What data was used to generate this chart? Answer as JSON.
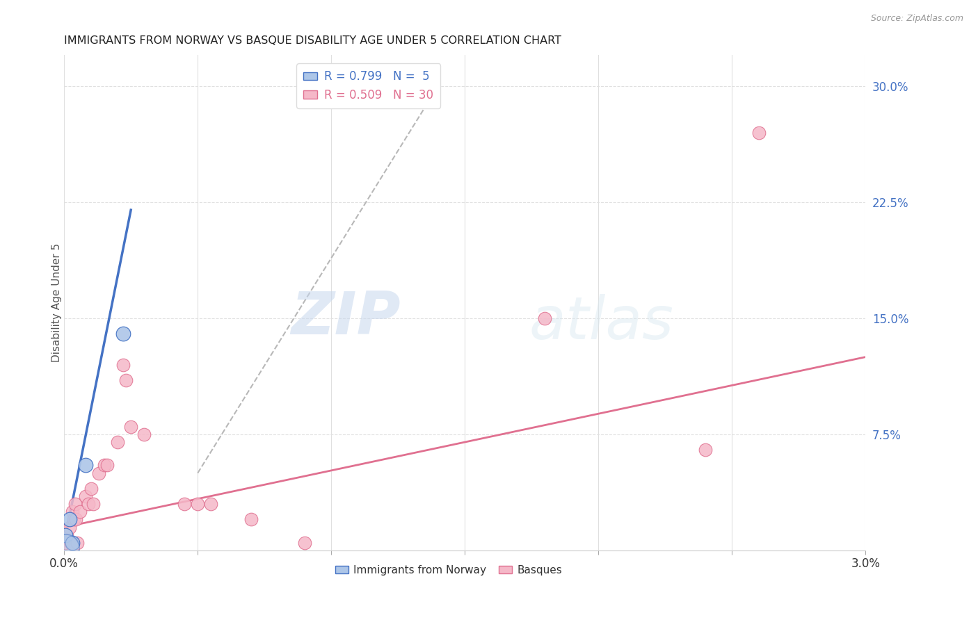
{
  "title": "IMMIGRANTS FROM NORWAY VS BASQUE DISABILITY AGE UNDER 5 CORRELATION CHART",
  "source": "Source: ZipAtlas.com",
  "ylabel": "Disability Age Under 5",
  "xlim": [
    0.0,
    0.03
  ],
  "ylim": [
    0.0,
    0.32
  ],
  "plot_ylim": [
    0.0,
    0.3
  ],
  "xticks": [
    0.0,
    0.005,
    0.01,
    0.015,
    0.02,
    0.025,
    0.03
  ],
  "xtick_labels": [
    "0.0%",
    "",
    "",
    "",
    "",
    "",
    "3.0%"
  ],
  "yticks_right": [
    0.075,
    0.15,
    0.225,
    0.3
  ],
  "ytick_labels_right": [
    "7.5%",
    "15.0%",
    "22.5%",
    "30.0%"
  ],
  "norway_color": "#adc6e8",
  "basque_color": "#f5b8c8",
  "norway_line_color": "#4472c4",
  "basque_line_color": "#e07090",
  "dashed_line_color": "#b8b8b8",
  "norway_R": 0.799,
  "norway_N": 5,
  "basque_R": 0.509,
  "basque_N": 30,
  "norway_points": [
    [
      5e-05,
      0.01
    ],
    [
      0.0002,
      0.02
    ],
    [
      0.0003,
      0.005
    ],
    [
      0.0008,
      0.055
    ],
    [
      0.0022,
      0.14
    ]
  ],
  "basque_points": [
    [
      5e-05,
      0.005
    ],
    [
      0.0001,
      0.01
    ],
    [
      0.0002,
      0.015
    ],
    [
      0.00025,
      0.005
    ],
    [
      0.0003,
      0.025
    ],
    [
      0.00035,
      0.02
    ],
    [
      0.0004,
      0.03
    ],
    [
      0.00045,
      0.02
    ],
    [
      0.0005,
      0.005
    ],
    [
      0.0006,
      0.025
    ],
    [
      0.0008,
      0.035
    ],
    [
      0.0009,
      0.03
    ],
    [
      0.001,
      0.04
    ],
    [
      0.0011,
      0.03
    ],
    [
      0.0013,
      0.05
    ],
    [
      0.0015,
      0.055
    ],
    [
      0.0016,
      0.055
    ],
    [
      0.002,
      0.07
    ],
    [
      0.0022,
      0.12
    ],
    [
      0.0023,
      0.11
    ],
    [
      0.0025,
      0.08
    ],
    [
      0.003,
      0.075
    ],
    [
      0.0045,
      0.03
    ],
    [
      0.005,
      0.03
    ],
    [
      0.0055,
      0.03
    ],
    [
      0.007,
      0.02
    ],
    [
      0.009,
      0.005
    ],
    [
      0.018,
      0.15
    ],
    [
      0.024,
      0.065
    ],
    [
      0.026,
      0.27
    ]
  ],
  "norway_trend_x": [
    0.0,
    0.0025
  ],
  "norway_trend_y": [
    0.005,
    0.22
  ],
  "basque_trend_x": [
    0.0,
    0.03
  ],
  "basque_trend_y": [
    0.015,
    0.125
  ],
  "diag_line_x": [
    0.005,
    0.014
  ],
  "diag_line_y": [
    0.05,
    0.3
  ],
  "watermark_zip": "ZIP",
  "watermark_atlas": "atlas",
  "bg_color": "#ffffff",
  "grid_color": "#e0e0e0",
  "title_color": "#222222",
  "right_axis_color": "#4472c4",
  "legend_norway_label": "R = 0.799   N =  5",
  "legend_basque_label": "R = 0.509   N = 30"
}
